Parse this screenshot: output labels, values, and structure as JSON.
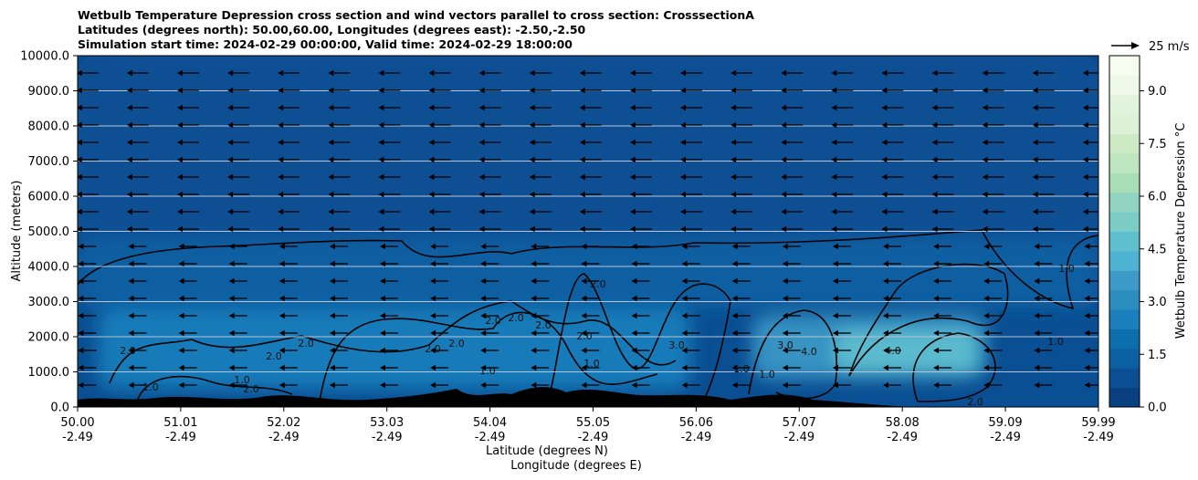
{
  "chart_data": {
    "type": "heatmap",
    "title_lines": [
      "Wetbulb Temperature Depression cross section and wind vectors parallel to cross section: CrosssectionA",
      "Latitudes (degrees north): 50.00,60.00, Longitudes (degrees east): -2.50,-2.50",
      "Simulation start time: 2024-02-29 00:00:00, Valid time: 2024-02-29 18:00:00"
    ],
    "xlabel_lat": "Latitude (degrees N)",
    "xlabel_lon": "Longitude (degrees E)",
    "ylabel": "Altitude (meters)",
    "x_ticks": [
      {
        "lat": "50.00",
        "lon": "-2.49"
      },
      {
        "lat": "51.01",
        "lon": "-2.49"
      },
      {
        "lat": "52.02",
        "lon": "-2.49"
      },
      {
        "lat": "53.03",
        "lon": "-2.49"
      },
      {
        "lat": "54.04",
        "lon": "-2.49"
      },
      {
        "lat": "55.05",
        "lon": "-2.49"
      },
      {
        "lat": "56.06",
        "lon": "-2.49"
      },
      {
        "lat": "57.07",
        "lon": "-2.49"
      },
      {
        "lat": "58.08",
        "lon": "-2.49"
      },
      {
        "lat": "59.09",
        "lon": "-2.49"
      },
      {
        "lat": "59.99",
        "lon": "-2.49"
      }
    ],
    "y_ticks": [
      "0.0",
      "1000.0",
      "2000.0",
      "3000.0",
      "4000.0",
      "5000.0",
      "6000.0",
      "7000.0",
      "8000.0",
      "9000.0",
      "10000.0"
    ],
    "xlim": [
      50.0,
      59.99
    ],
    "ylim": [
      0,
      10000
    ],
    "grid": "horizontal",
    "colorbar": {
      "label": "Wetbulb Temperature Depression $^\\circ$C",
      "label_display": "Wetbulb Temperature Depression °C",
      "ticks": [
        "0.0",
        "1.5",
        "3.0",
        "4.5",
        "6.0",
        "7.5",
        "9.0"
      ],
      "range": [
        0,
        10
      ],
      "colors": [
        "#084081",
        "#0a4f93",
        "#0b5fa3",
        "#0d6eae",
        "#1a7fbc",
        "#2b8cbe",
        "#3b9ac8",
        "#4eb3d3",
        "#5fbfce",
        "#7bccc4",
        "#8fd3c0",
        "#a8ddb5",
        "#bde5bf",
        "#ccebc5",
        "#dcf1d6",
        "#e0f3db",
        "#eef8e8",
        "#f7fcf0"
      ]
    },
    "quiver_key": "25 m/s",
    "contour_labels": [
      "1.0",
      "2.0",
      "3.0",
      "4.0"
    ],
    "field_regions": [
      {
        "value": 1.0,
        "lat_range": [
          50.0,
          59.99
        ],
        "alt_range": [
          4800,
          10000
        ]
      },
      {
        "value": 1.5,
        "lat_range": [
          50.0,
          59.99
        ],
        "alt_range": [
          2800,
          4800
        ]
      },
      {
        "value": 2.5,
        "lat_range": [
          50.2,
          56.0
        ],
        "alt_range": [
          500,
          2800
        ]
      },
      {
        "value": 3.5,
        "lat_range": [
          56.6,
          58.9
        ],
        "alt_range": [
          800,
          2600
        ]
      },
      {
        "value": 4.5,
        "lat_range": [
          57.4,
          58.8
        ],
        "alt_range": [
          1000,
          2200
        ]
      }
    ]
  }
}
